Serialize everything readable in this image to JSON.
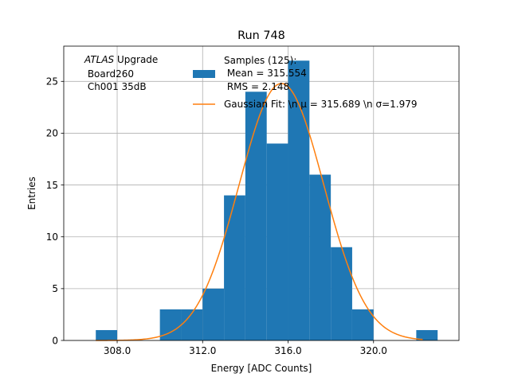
{
  "chart_data": {
    "type": "bar",
    "title": "Run 748",
    "xlabel": "Energy [ADC Counts]",
    "ylabel": "Entries",
    "xlim": [
      305.5,
      324.0
    ],
    "ylim": [
      0,
      28.4
    ],
    "xticks": [
      308.0,
      312.0,
      316.0,
      320.0
    ],
    "xtick_labels": [
      "308.0",
      "312.0",
      "316.0",
      "320.0"
    ],
    "yticks": [
      0,
      5,
      10,
      15,
      20,
      25
    ],
    "ytick_labels": [
      "0",
      "5",
      "10",
      "15",
      "20",
      "25"
    ],
    "grid": true,
    "bin_width": 1.0,
    "series": [
      {
        "name": "Samples (125):\n Mean = 315.554\n RMS = 2.148",
        "kind": "histogram",
        "color": "#1f77b4",
        "bin_left_edges": [
          307,
          310,
          311,
          312,
          313,
          314,
          315,
          316,
          317,
          318,
          319,
          322
        ],
        "counts": [
          1,
          3,
          3,
          5,
          14,
          24,
          19,
          27,
          16,
          9,
          3,
          1
        ]
      },
      {
        "name": "Gaussian Fit: \\n $\\mu$ = 315.689 \\n $\\sigma$=1.979",
        "kind": "line",
        "color": "#ff7f0e",
        "mu": 315.689,
        "sigma": 1.979,
        "amplitude": 24.8,
        "x_range": [
          307.0,
          322.3
        ]
      }
    ],
    "legend": {
      "placement": "top-right",
      "entries": [
        {
          "kind": "patch",
          "color": "#1f77b4",
          "lines": [
            "Samples (125):",
            " Mean = 315.554",
            " RMS = 2.148"
          ]
        },
        {
          "kind": "line",
          "color": "#ff7f0e",
          "label": "Gaussian Fit: \\n μ = 315.689 \\n σ=1.979"
        }
      ]
    },
    "annotation": {
      "placement": "top-left",
      "italic_word": "ATLAS",
      "word": " Upgrade",
      "lines": [
        " Board260",
        " Ch001 35dB"
      ]
    }
  }
}
